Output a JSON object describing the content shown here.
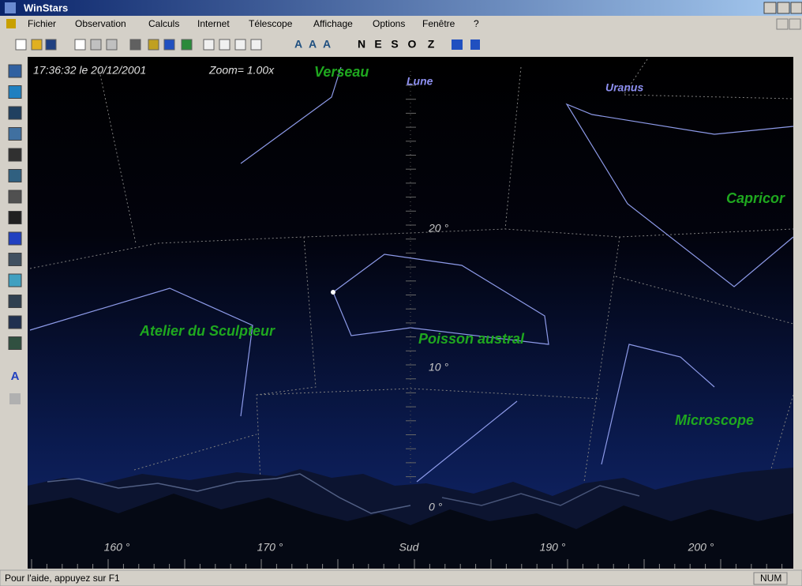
{
  "window": {
    "title": "WinStars"
  },
  "menu": [
    "Fichier",
    "Observation",
    "Calculs",
    "Internet",
    "Télescope",
    "Affichage",
    "Options",
    "Fenêtre",
    "?"
  ],
  "toolbar": {
    "letters": [
      "A",
      "A",
      "A",
      "N",
      "E",
      "S",
      "O",
      "Z"
    ]
  },
  "left_toolbar": {
    "letter": "A"
  },
  "sky": {
    "datetime": "17:36:32 le 20/12/2001",
    "zoom": "Zoom= 1.00x",
    "labels": {
      "verseau": "Verseau",
      "lune": "Lune",
      "uranus": "Uranus",
      "capricorne": "Capricor",
      "sculpteur": "Atelier du Sculpteur",
      "poisson": "Poisson austral",
      "microscope": "Microscope"
    },
    "altitude_labels": [
      "20 °",
      "10 °",
      "0 °"
    ],
    "azimuth_labels": [
      "160 °",
      "170 °",
      "Sud",
      "190 °",
      "200 °"
    ]
  },
  "status": {
    "help": "Pour l'aide, appuyez sur F1",
    "num": "NUM"
  }
}
